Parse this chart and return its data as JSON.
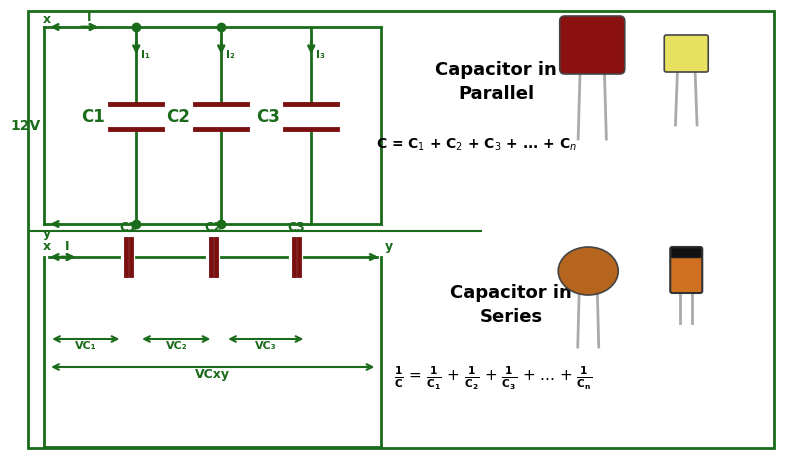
{
  "bg_color": "#ffffff",
  "circuit_color": "#1a6b1a",
  "cap_color": "#7a1010",
  "fig_width": 7.5,
  "fig_height": 4.41,
  "parallel_title": "Capacitor in\nParallel",
  "series_title": "Capacitor in\nSeries",
  "voltage_label": "12V",
  "cap_red": "#8b1010",
  "cap_yellow": "#e8e060",
  "cap_brown": "#b5651d",
  "cap_orange": "#d07020",
  "lead_color": "#aaaaaa",
  "text_color": "#000000"
}
